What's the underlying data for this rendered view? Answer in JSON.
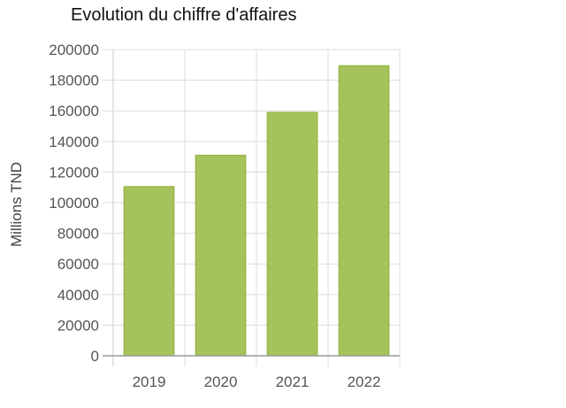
{
  "chart_data": {
    "type": "bar",
    "title": "Evolution du chiffre d'affaires",
    "xlabel": "",
    "ylabel": "Millions TND",
    "categories": [
      "2019",
      "2020",
      "2021",
      "2022"
    ],
    "values": [
      110500,
      131000,
      159000,
      189500
    ],
    "ylim": [
      0,
      200000
    ],
    "yticks": [
      0,
      20000,
      40000,
      60000,
      80000,
      100000,
      120000,
      140000,
      160000,
      180000,
      200000
    ],
    "grid": true,
    "legend": "none",
    "colors": {
      "bar_fill": "#A6C25A",
      "bar_stroke": "#8FB03A",
      "grid": "#dcdcdc",
      "axis": "#9a9a9a",
      "tick_text": "#555555"
    }
  }
}
